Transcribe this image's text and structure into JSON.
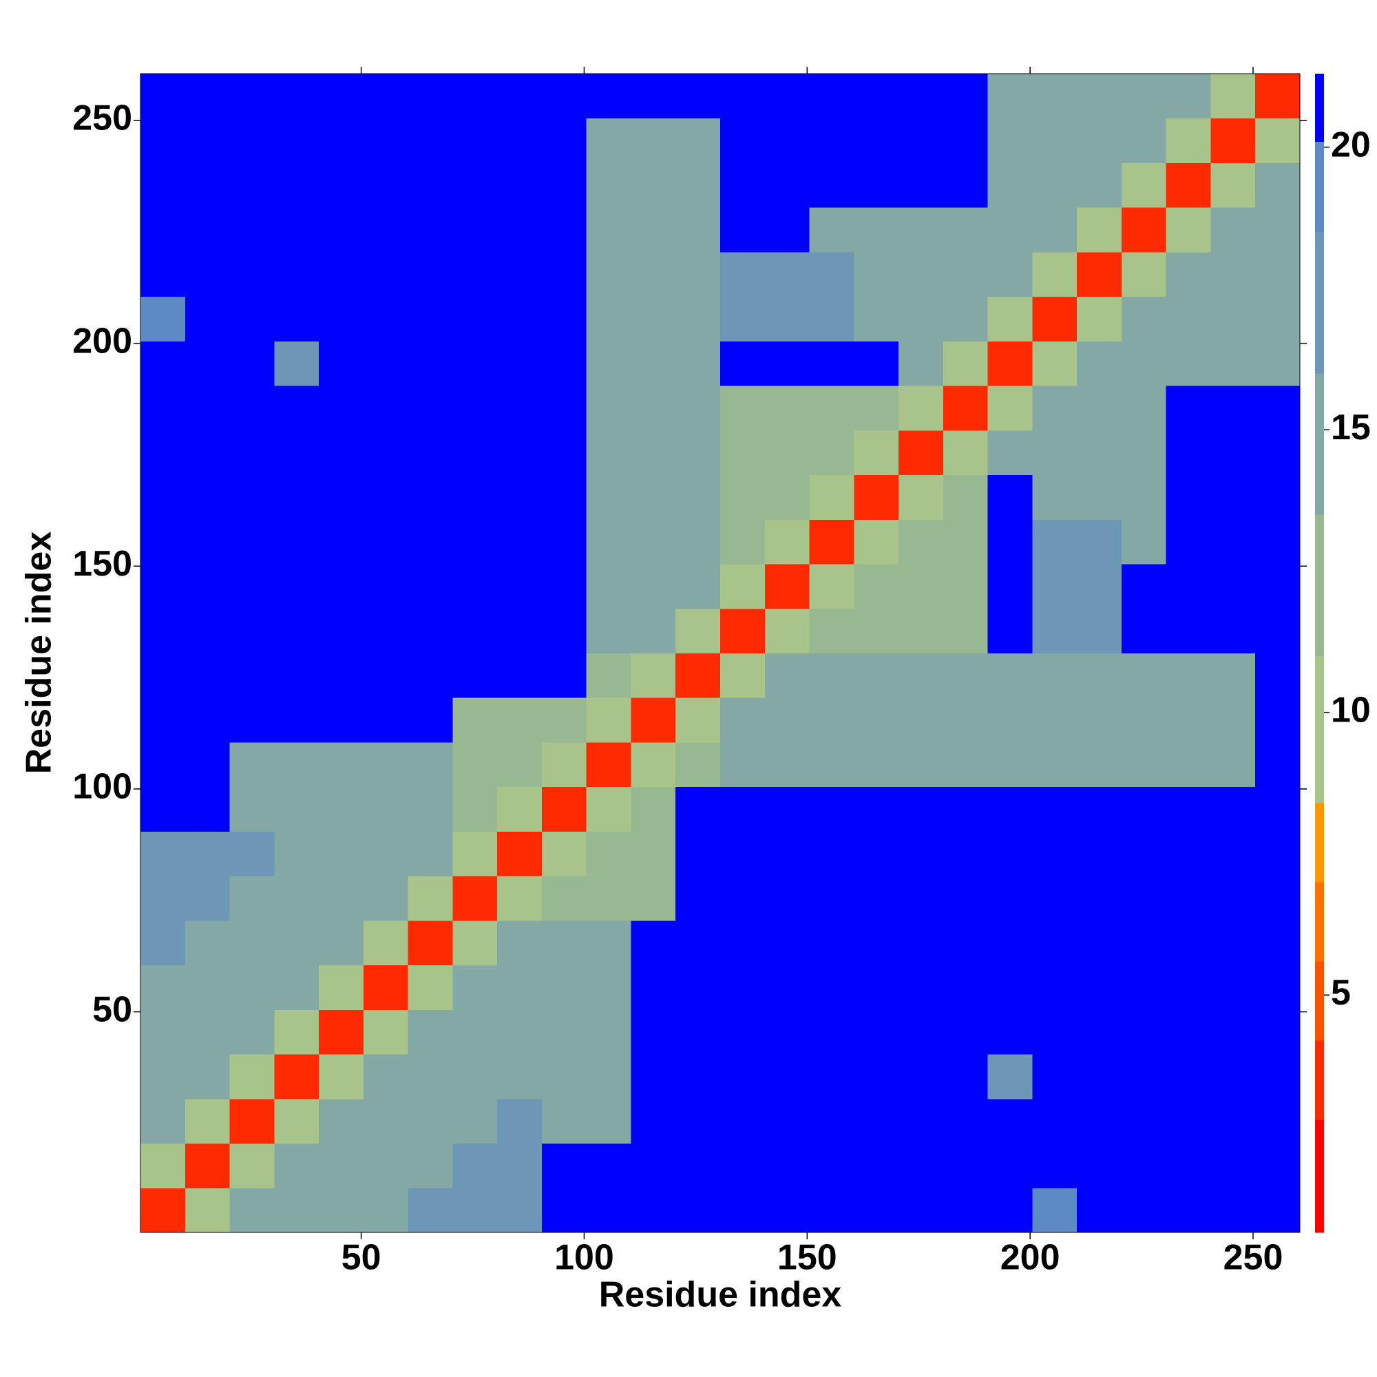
{
  "chart_data": {
    "type": "heatmap",
    "xlabel": "Residue index",
    "ylabel": "Residue index",
    "xlim": [
      0.5,
      260.5
    ],
    "ylim": [
      0.5,
      260.5
    ],
    "xticks": [
      50,
      100,
      150,
      200,
      250
    ],
    "yticks": [
      50,
      100,
      150,
      200,
      250
    ],
    "xbins": [
      0.5,
      10.5,
      20.5,
      30.5,
      40.5,
      50.5,
      60.5,
      70.5,
      80.5,
      90.5,
      100.5,
      110.5,
      120.5,
      130.5,
      140.5,
      150.5,
      160.5,
      170.5,
      180.5,
      190.5,
      200.5,
      210.5,
      220.5,
      230.5,
      240.5,
      250.5,
      260.5
    ],
    "ybins": [
      0.5,
      10.5,
      20.5,
      30.5,
      40.5,
      50.5,
      60.5,
      70.5,
      80.5,
      90.5,
      100.5,
      110.5,
      120.5,
      130.5,
      140.5,
      150.5,
      160.5,
      170.5,
      180.5,
      190.5,
      200.5,
      210.5,
      220.5,
      230.5,
      240.5,
      250.5,
      260.5
    ],
    "z": [
      [
        4,
        10,
        14,
        14,
        14,
        14,
        16,
        16,
        16,
        21,
        21,
        21,
        21,
        21,
        21,
        21,
        21,
        21,
        21,
        21,
        19,
        21,
        21,
        21,
        21,
        21
      ],
      [
        10,
        4,
        10,
        14,
        14,
        14,
        14,
        16,
        16,
        21,
        21,
        21,
        21,
        21,
        21,
        21,
        21,
        21,
        21,
        21,
        21,
        21,
        21,
        21,
        21,
        21
      ],
      [
        14,
        10,
        4,
        10,
        14,
        14,
        14,
        14,
        16,
        15,
        15,
        21,
        21,
        21,
        21,
        21,
        21,
        21,
        21,
        21,
        21,
        21,
        21,
        21,
        21,
        21
      ],
      [
        14,
        14,
        10,
        4,
        10,
        14,
        14,
        14,
        14,
        15,
        15,
        21,
        21,
        21,
        21,
        21,
        21,
        21,
        21,
        18,
        21,
        21,
        21,
        21,
        21,
        21
      ],
      [
        14,
        14,
        14,
        10,
        4,
        10,
        14,
        14,
        14,
        15,
        15,
        21,
        21,
        21,
        21,
        21,
        21,
        21,
        21,
        21,
        21,
        21,
        21,
        21,
        21,
        21
      ],
      [
        14,
        14,
        14,
        14,
        10,
        4,
        10,
        14,
        14,
        15,
        15,
        21,
        21,
        21,
        21,
        21,
        21,
        21,
        21,
        21,
        21,
        21,
        21,
        21,
        21,
        21
      ],
      [
        16,
        14,
        14,
        14,
        14,
        10,
        4,
        10,
        14,
        15,
        15,
        21,
        21,
        21,
        21,
        21,
        21,
        21,
        21,
        21,
        21,
        21,
        21,
        21,
        21,
        21
      ],
      [
        16,
        16,
        14,
        14,
        14,
        14,
        10,
        4,
        10,
        12,
        12,
        12,
        21,
        21,
        21,
        21,
        21,
        21,
        21,
        21,
        21,
        21,
        21,
        21,
        21,
        21
      ],
      [
        16,
        16,
        16,
        14,
        14,
        14,
        14,
        10,
        4,
        10,
        12,
        12,
        21,
        21,
        21,
        21,
        21,
        21,
        21,
        21,
        21,
        21,
        21,
        21,
        21,
        21
      ],
      [
        21,
        21,
        15,
        15,
        15,
        15,
        15,
        12,
        10,
        4,
        10,
        12,
        21,
        21,
        21,
        21,
        21,
        21,
        21,
        21,
        21,
        21,
        21,
        21,
        21,
        21
      ],
      [
        21,
        21,
        15,
        15,
        15,
        15,
        15,
        12,
        12,
        10,
        4,
        10,
        12,
        15,
        15,
        15,
        15,
        15,
        15,
        15,
        15,
        15,
        15,
        15,
        15,
        21
      ],
      [
        21,
        21,
        21,
        21,
        21,
        21,
        21,
        12,
        12,
        12,
        10,
        4,
        10,
        15,
        15,
        15,
        15,
        15,
        15,
        15,
        15,
        15,
        15,
        15,
        15,
        21
      ],
      [
        21,
        21,
        21,
        21,
        21,
        21,
        21,
        21,
        21,
        21,
        12,
        10,
        4,
        10,
        15,
        15,
        15,
        15,
        15,
        15,
        15,
        15,
        15,
        15,
        15,
        21
      ],
      [
        21,
        21,
        21,
        21,
        21,
        21,
        21,
        21,
        21,
        21,
        15,
        15,
        10,
        4,
        10,
        13,
        13,
        13,
        13,
        21,
        16,
        16,
        21,
        21,
        21,
        21
      ],
      [
        21,
        21,
        21,
        21,
        21,
        21,
        21,
        21,
        21,
        21,
        15,
        15,
        15,
        10,
        4,
        10,
        13,
        13,
        13,
        21,
        16,
        16,
        21,
        21,
        21,
        21
      ],
      [
        21,
        21,
        21,
        21,
        21,
        21,
        21,
        21,
        21,
        21,
        15,
        15,
        15,
        13,
        10,
        4,
        10,
        13,
        13,
        21,
        17,
        17,
        15,
        21,
        21,
        21
      ],
      [
        21,
        21,
        21,
        21,
        21,
        21,
        21,
        21,
        21,
        21,
        15,
        15,
        15,
        13,
        13,
        10,
        4,
        10,
        13,
        21,
        15,
        15,
        15,
        21,
        21,
        21
      ],
      [
        21,
        21,
        21,
        21,
        21,
        21,
        21,
        21,
        21,
        21,
        15,
        15,
        15,
        13,
        13,
        13,
        10,
        4,
        10,
        15,
        15,
        15,
        15,
        21,
        21,
        21
      ],
      [
        21,
        21,
        21,
        21,
        21,
        21,
        21,
        21,
        21,
        21,
        15,
        15,
        15,
        13,
        13,
        13,
        13,
        10,
        4,
        10,
        15,
        15,
        15,
        21,
        21,
        21
      ],
      [
        21,
        21,
        21,
        18,
        21,
        21,
        21,
        21,
        21,
        21,
        15,
        15,
        15,
        21,
        21,
        21,
        21,
        15,
        10,
        4,
        10,
        14,
        14,
        14,
        14,
        14
      ],
      [
        19,
        21,
        21,
        21,
        21,
        21,
        21,
        21,
        21,
        21,
        15,
        15,
        15,
        16,
        16,
        17,
        15,
        15,
        15,
        10,
        4,
        10,
        14,
        14,
        14,
        14
      ],
      [
        21,
        21,
        21,
        21,
        21,
        21,
        21,
        21,
        21,
        21,
        15,
        15,
        15,
        16,
        16,
        17,
        15,
        15,
        15,
        14,
        10,
        4,
        10,
        14,
        14,
        14
      ],
      [
        21,
        21,
        21,
        21,
        21,
        21,
        21,
        21,
        21,
        21,
        15,
        15,
        15,
        21,
        21,
        15,
        15,
        15,
        15,
        14,
        14,
        10,
        4,
        10,
        14,
        14
      ],
      [
        21,
        21,
        21,
        21,
        21,
        21,
        21,
        21,
        21,
        21,
        15,
        15,
        15,
        21,
        21,
        21,
        21,
        21,
        21,
        14,
        14,
        14,
        10,
        4,
        10,
        14
      ],
      [
        21,
        21,
        21,
        21,
        21,
        21,
        21,
        21,
        21,
        21,
        15,
        15,
        15,
        21,
        21,
        21,
        21,
        21,
        21,
        14,
        14,
        14,
        14,
        10,
        4,
        10
      ],
      [
        21,
        21,
        21,
        21,
        21,
        21,
        21,
        21,
        21,
        21,
        21,
        21,
        21,
        21,
        21,
        21,
        21,
        21,
        21,
        14,
        14,
        14,
        14,
        14,
        10,
        4
      ]
    ],
    "clim": [
      0.8,
      21.3
    ],
    "cticks": [
      5,
      10,
      15,
      20
    ],
    "colorscale": [
      [
        0.8,
        "#ff0000"
      ],
      [
        2.8,
        "#ff2a00"
      ],
      [
        4.2,
        "#ff5000"
      ],
      [
        5.6,
        "#ff7000"
      ],
      [
        7,
        "#ff9500"
      ],
      [
        8.4,
        "#a9c48a"
      ],
      [
        11,
        "#98b891"
      ],
      [
        13.5,
        "#84a9a4"
      ],
      [
        16,
        "#6e97b7"
      ],
      [
        18.5,
        "#5d8ac4"
      ],
      [
        20.1,
        "#0000ff"
      ]
    ]
  }
}
